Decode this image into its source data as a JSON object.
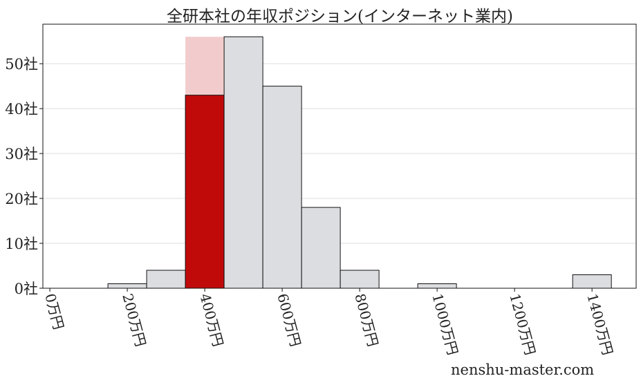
{
  "chart_data": {
    "type": "bar",
    "title": "全研本社の年収ポジション(インターネット業内)",
    "xlabel": "",
    "ylabel": "",
    "x_unit_suffix": "万円",
    "y_unit_suffix": "社",
    "bin_width": 100,
    "xlim": [
      -18,
      1514
    ],
    "ylim": [
      0,
      58.8
    ],
    "xticks": [
      0,
      200,
      400,
      600,
      800,
      1000,
      1200,
      1400
    ],
    "xtick_labels": [
      "0万円",
      "200万円",
      "400万円",
      "600万円",
      "800万円",
      "1000万円",
      "1200万円",
      "1400万円"
    ],
    "yticks": [
      0,
      10,
      20,
      30,
      40,
      50
    ],
    "ytick_labels": [
      "0社",
      "10社",
      "20社",
      "30社",
      "40社",
      "50社"
    ],
    "grid": "horizontal",
    "bins": [
      200,
      300,
      400,
      500,
      600,
      700,
      800,
      1000,
      1400
    ],
    "values": [
      1,
      4,
      43,
      56,
      45,
      18,
      4,
      1,
      3
    ],
    "highlight": {
      "bin": 400,
      "value": 43,
      "background_value": 56
    },
    "colors": {
      "bar": "#dcdde0",
      "highlight": "#c00a0a",
      "highlight_background": "#f2cccc",
      "edge": "#111111",
      "grid": "#dddddd"
    }
  },
  "watermark": "nenshu-master.com"
}
